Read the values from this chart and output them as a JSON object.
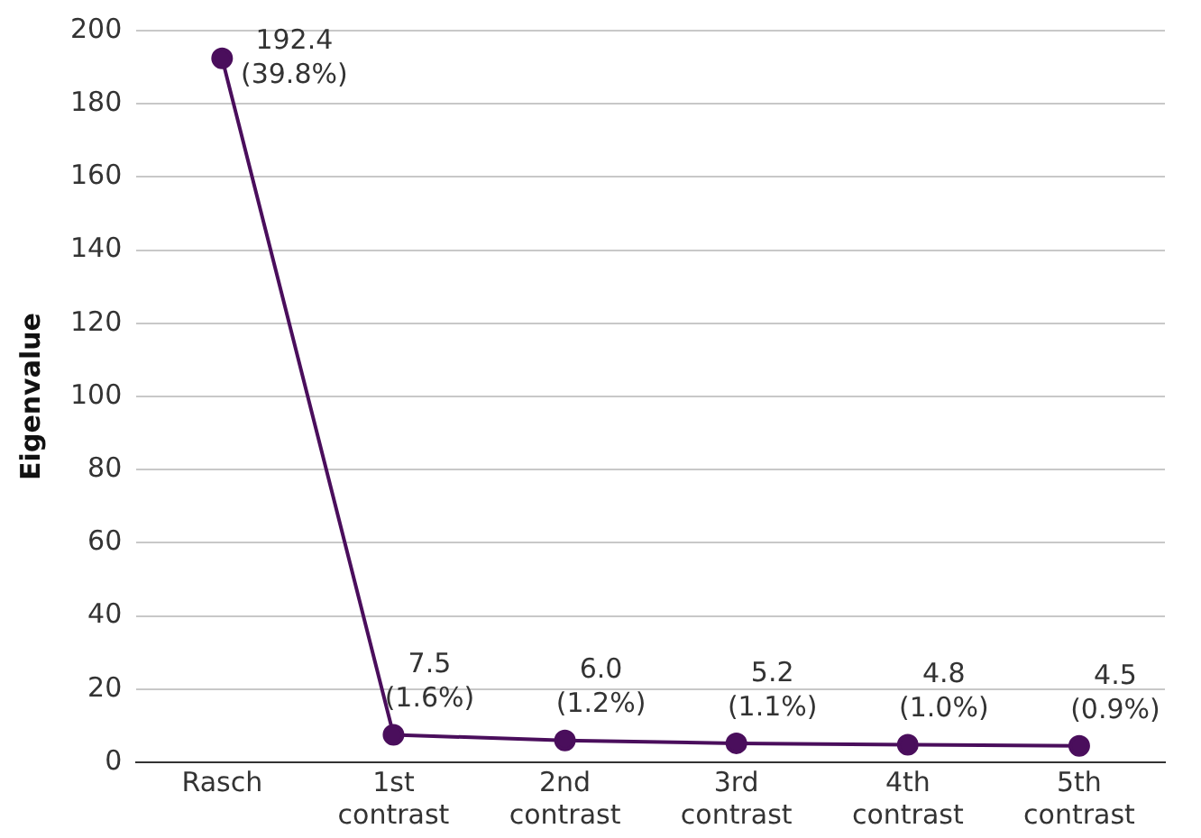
{
  "chart_data": {
    "type": "line",
    "ylabel": "Eigenvalue",
    "categories": [
      "Rasch",
      "1st contrast",
      "2nd contrast",
      "3rd contrast",
      "4th contrast",
      "5th contrast"
    ],
    "series": [
      {
        "color": "#4a0e5c",
        "values": [
          192.4,
          7.5,
          6.0,
          5.2,
          4.8,
          4.5
        ],
        "value_labels": [
          "192.4 (39.8%)",
          "7.5 (1.6%)",
          "6.0 (1.2%)",
          "5.2 (1.1%)",
          "4.8 (1.0%)",
          "4.5 (0.9%)"
        ]
      }
    ],
    "ylim": [
      0,
      200
    ],
    "yticks": [
      0,
      20,
      40,
      60,
      80,
      100,
      120,
      140,
      160,
      180,
      200
    ],
    "grid": "y",
    "legend": false,
    "marker": "circle",
    "line_style": "solid"
  }
}
